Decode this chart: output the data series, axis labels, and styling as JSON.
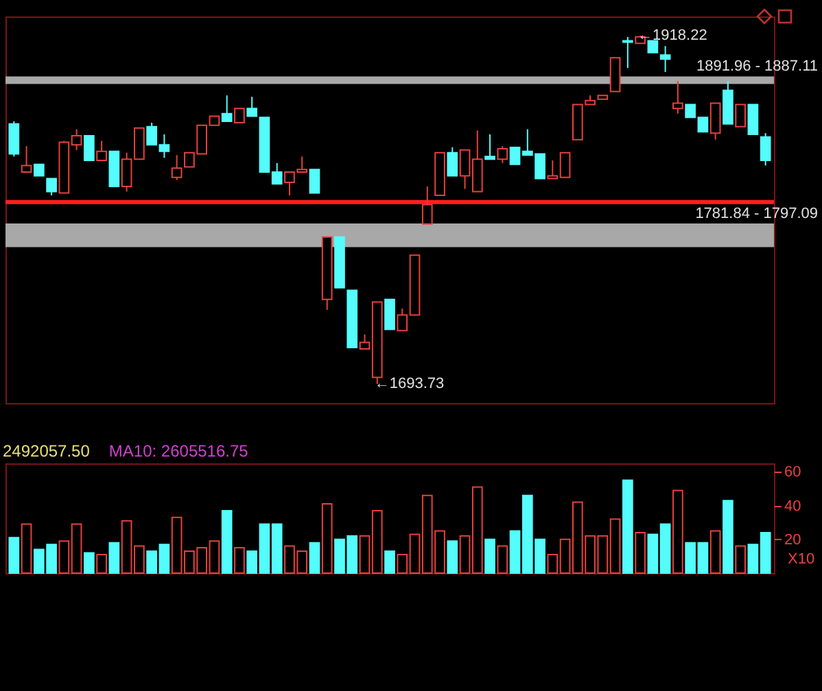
{
  "chart_data": [
    {
      "type": "candlestick",
      "tick_labels": false,
      "categories": [
        null,
        null,
        null,
        null,
        null,
        null,
        null,
        null,
        null,
        null,
        null,
        null,
        null,
        null,
        null,
        null,
        null,
        null,
        null,
        null,
        null,
        null,
        null,
        null,
        null,
        null,
        null,
        null,
        null,
        null,
        null,
        null,
        null,
        null,
        null,
        null,
        null,
        null,
        null,
        null,
        null,
        null,
        null,
        null,
        null,
        null,
        null,
        null,
        null,
        null,
        null,
        null,
        null,
        null,
        null,
        null,
        null,
        null,
        null,
        null,
        null
      ],
      "ohlc": [
        [
          1861.3,
          1863.0,
          1840.3,
          1842.0
        ],
        [
          1830.3,
          1847.0,
          1830.3,
          1834.5
        ],
        [
          1835.3,
          1835.3,
          1827.8,
          1827.8
        ],
        [
          1826.1,
          1826.1,
          1815.2,
          1817.7
        ],
        [
          1816.8,
          1850.4,
          1816.8,
          1849.5
        ],
        [
          1847.9,
          1857.9,
          1844.5,
          1853.7
        ],
        [
          1853.7,
          1853.7,
          1837.8,
          1837.8
        ],
        [
          1837.8,
          1850.4,
          1837.8,
          1843.7
        ],
        [
          1843.7,
          1843.7,
          1821.0,
          1821.0
        ],
        [
          1821.0,
          1842.8,
          1817.7,
          1838.6
        ],
        [
          1838.6,
          1858.7,
          1838.6,
          1858.7
        ],
        [
          1859.6,
          1862.1,
          1847.9,
          1847.9
        ],
        [
          1847.9,
          1854.6,
          1839.5,
          1843.7
        ],
        [
          1826.9,
          1841.2,
          1825.2,
          1832.8
        ],
        [
          1833.6,
          1842.8,
          1833.6,
          1842.8
        ],
        [
          1842.0,
          1860.4,
          1842.0,
          1860.4
        ],
        [
          1860.4,
          1866.3,
          1860.4,
          1866.3
        ],
        [
          1868.0,
          1879.7,
          1863.0,
          1863.0
        ],
        [
          1862.1,
          1871.3,
          1862.1,
          1871.3
        ],
        [
          1871.3,
          1878.8,
          1866.3,
          1866.3
        ],
        [
          1865.5,
          1865.5,
          1830.3,
          1830.3
        ],
        [
          1830.3,
          1836.1,
          1822.7,
          1822.7
        ],
        [
          1823.6,
          1830.3,
          1815.2,
          1830.3
        ],
        [
          1830.3,
          1840.3,
          1830.3,
          1831.9
        ],
        [
          1831.9,
          1831.9,
          1816.8,
          1816.8
        ],
        [
          1748.2,
          1788.4,
          1741.5,
          1788.4
        ],
        [
          1788.4,
          1788.4,
          1755.7,
          1755.7
        ],
        [
          1754.0,
          1754.0,
          1717.2,
          1717.2
        ],
        [
          1716.3,
          1725.6,
          1716.3,
          1720.5
        ],
        [
          1697.9,
          1746.5,
          1693.73,
          1746.5
        ],
        [
          1748.2,
          1748.2,
          1728.9,
          1728.9
        ],
        [
          1728.1,
          1742.3,
          1728.1,
          1738.1
        ],
        [
          1738.1,
          1776.7,
          1738.1,
          1776.7
        ],
        [
          1796.8,
          1821.0,
          1796.8,
          1809.3
        ],
        [
          1815.2,
          1842.8,
          1815.2,
          1842.8
        ],
        [
          1842.8,
          1846.2,
          1827.8,
          1827.8
        ],
        [
          1827.8,
          1844.5,
          1819.4,
          1844.5
        ],
        [
          1817.7,
          1857.1,
          1817.7,
          1838.6
        ],
        [
          1840.3,
          1854.6,
          1838.6,
          1838.6
        ],
        [
          1838.6,
          1847.0,
          1836.1,
          1845.3
        ],
        [
          1846.2,
          1846.2,
          1835.3,
          1835.3
        ],
        [
          1843.7,
          1857.9,
          1841.2,
          1841.2
        ],
        [
          1842.0,
          1842.0,
          1826.1,
          1826.1
        ],
        [
          1826.1,
          1837.8,
          1826.1,
          1827.8
        ],
        [
          1826.9,
          1842.8,
          1826.9,
          1842.8
        ],
        [
          1851.2,
          1873.8,
          1851.2,
          1873.8
        ],
        [
          1873.8,
          1879.7,
          1873.8,
          1876.3
        ],
        [
          1877.2,
          1879.7,
          1877.2,
          1879.7
        ],
        [
          1882.2,
          1904.0,
          1882.2,
          1904.0
        ],
        [
          1914.9,
          1917.4,
          1897.3,
          1914.0
        ],
        [
          1913.2,
          1918.22,
          1913.2,
          1917.4
        ],
        [
          1914.9,
          1914.9,
          1907.3,
          1907.3
        ],
        [
          1905.7,
          1911.5,
          1894.8,
          1903.1
        ],
        [
          1871.3,
          1888.9,
          1868.0,
          1874.7
        ],
        [
          1873.8,
          1873.8,
          1865.5,
          1865.5
        ],
        [
          1865.5,
          1865.5,
          1856.2,
          1856.2
        ],
        [
          1855.4,
          1874.7,
          1851.2,
          1874.7
        ],
        [
          1883.0,
          1888.9,
          1861.3,
          1861.3
        ],
        [
          1859.6,
          1873.8,
          1859.6,
          1873.8
        ],
        [
          1873.8,
          1873.8,
          1854.6,
          1854.6
        ],
        [
          1852.9,
          1855.4,
          1834.5,
          1837.8
        ]
      ],
      "colors": [
        "#54fcfc",
        "#e8403c",
        "#54fcfc",
        "#54fcfc",
        "#e8403c",
        "#e8403c",
        "#54fcfc",
        "#e8403c",
        "#54fcfc",
        "#e8403c",
        "#e8403c",
        "#54fcfc",
        "#54fcfc",
        "#e8403c",
        "#e8403c",
        "#e8403c",
        "#e8403c",
        "#54fcfc",
        "#e8403c",
        "#54fcfc",
        "#54fcfc",
        "#54fcfc",
        "#e8403c",
        "#e8403c",
        "#54fcfc",
        "#e8403c",
        "#54fcfc",
        "#54fcfc",
        "#e8403c",
        "#e8403c",
        "#54fcfc",
        "#e8403c",
        "#e8403c",
        "#e8403c",
        "#e8403c",
        "#54fcfc",
        "#e8403c",
        "#e8403c",
        "#54fcfc",
        "#e8403c",
        "#54fcfc",
        "#54fcfc",
        "#54fcfc",
        "#e8403c",
        "#e8403c",
        "#e8403c",
        "#e8403c",
        "#e8403c",
        "#e8403c",
        "#54fcfc",
        "#e8403c",
        "#54fcfc",
        "#54fcfc",
        "#e8403c",
        "#54fcfc",
        "#54fcfc",
        "#e8403c",
        "#54fcfc",
        "#e8403c",
        "#54fcfc",
        "#54fcfc"
      ],
      "bands": [
        {
          "axis": "y",
          "from": 1781.84,
          "to": 1797.09,
          "label": "1781.84 - 1797.09",
          "color": "#a8a8a8"
        },
        {
          "axis": "y",
          "from": 1887.11,
          "to": 1891.96,
          "label": "1891.96 - 1887.11",
          "color": "#a8a8a8"
        }
      ],
      "ref_lines": [
        {
          "axis": "y",
          "value": 1811.0,
          "color": "#ff2020"
        }
      ],
      "annotations": [
        "←1918.22",
        "←1693.73"
      ]
    },
    {
      "type": "bar",
      "categories": [
        null,
        null,
        null,
        null,
        null,
        null,
        null,
        null,
        null,
        null,
        null,
        null,
        null,
        null,
        null,
        null,
        null,
        null,
        null,
        null,
        null,
        null,
        null,
        null,
        null,
        null,
        null,
        null,
        null,
        null,
        null,
        null,
        null,
        null,
        null,
        null,
        null,
        null,
        null,
        null,
        null,
        null,
        null,
        null,
        null,
        null,
        null,
        null,
        null,
        null,
        null,
        null,
        null,
        null,
        null,
        null,
        null,
        null,
        null,
        null,
        null
      ],
      "values": [
        21,
        29,
        14,
        17,
        19,
        29,
        12,
        11,
        18,
        31,
        16,
        13,
        17,
        33,
        13,
        15,
        19,
        37,
        15,
        13,
        29,
        29,
        16,
        13,
        18,
        41,
        20,
        22,
        22,
        37,
        13,
        11,
        23,
        46,
        25,
        19,
        22,
        51,
        20,
        16,
        25,
        46,
        20,
        11,
        20,
        42,
        22,
        22,
        32,
        55,
        24,
        23,
        29,
        49,
        18,
        18,
        25,
        43,
        16,
        17,
        24
      ],
      "colors": [
        "#54fcfc",
        "#e8403c",
        "#54fcfc",
        "#54fcfc",
        "#e8403c",
        "#e8403c",
        "#54fcfc",
        "#e8403c",
        "#54fcfc",
        "#e8403c",
        "#e8403c",
        "#54fcfc",
        "#54fcfc",
        "#e8403c",
        "#e8403c",
        "#e8403c",
        "#e8403c",
        "#54fcfc",
        "#e8403c",
        "#54fcfc",
        "#54fcfc",
        "#54fcfc",
        "#e8403c",
        "#e8403c",
        "#54fcfc",
        "#e8403c",
        "#54fcfc",
        "#54fcfc",
        "#e8403c",
        "#e8403c",
        "#54fcfc",
        "#e8403c",
        "#e8403c",
        "#e8403c",
        "#e8403c",
        "#54fcfc",
        "#e8403c",
        "#e8403c",
        "#54fcfc",
        "#e8403c",
        "#54fcfc",
        "#54fcfc",
        "#54fcfc",
        "#e8403c",
        "#e8403c",
        "#e8403c",
        "#e8403c",
        "#e8403c",
        "#e8403c",
        "#54fcfc",
        "#e8403c",
        "#54fcfc",
        "#54fcfc",
        "#e8403c",
        "#54fcfc",
        "#54fcfc",
        "#e8403c",
        "#54fcfc",
        "#e8403c",
        "#54fcfc",
        "#54fcfc"
      ],
      "ylim": [
        0,
        65
      ],
      "yticks": [
        20,
        40,
        60
      ],
      "annotations": [
        "2492057.50",
        "MA10: 2605516.75",
        "X10"
      ]
    }
  ]
}
